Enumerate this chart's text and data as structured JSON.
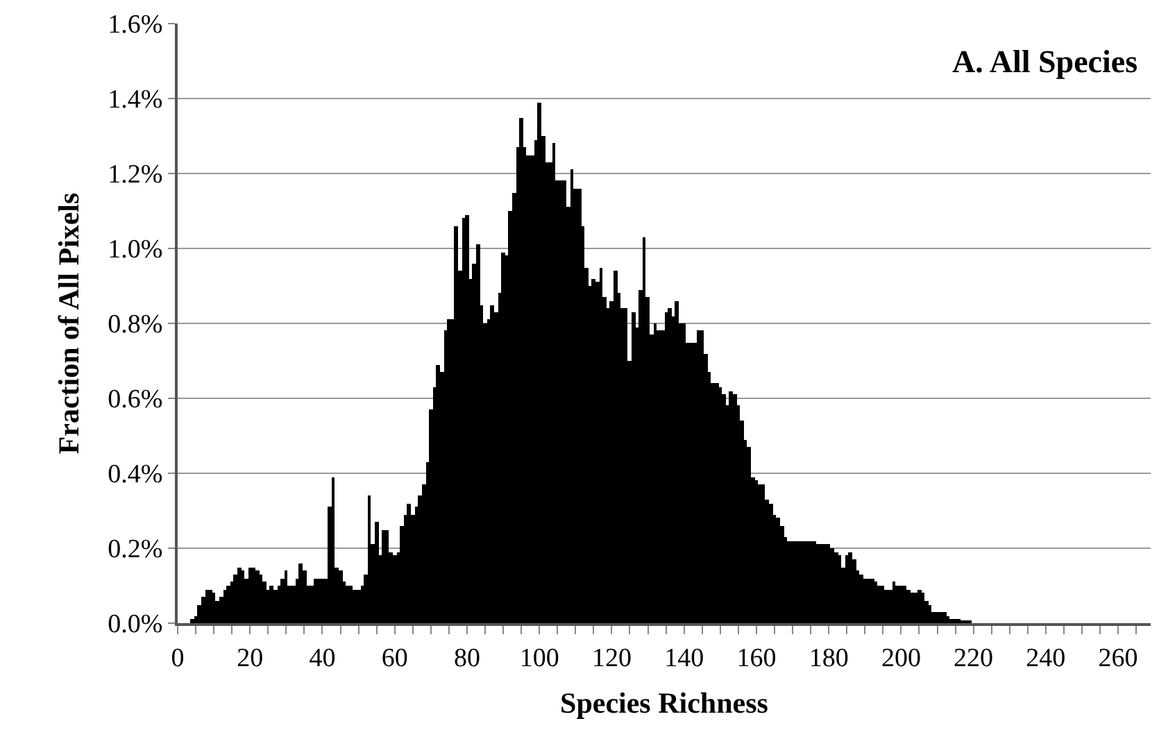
{
  "chart_data": {
    "type": "bar",
    "annotations": [
      "A. All Species"
    ],
    "xlabel": "Species Richness",
    "ylabel": "Fraction of All Pixels",
    "x": [
      4,
      5,
      6,
      7,
      8,
      9,
      10,
      11,
      12,
      13,
      14,
      15,
      16,
      17,
      18,
      19,
      20,
      21,
      22,
      23,
      24,
      25,
      26,
      27,
      28,
      29,
      30,
      31,
      32,
      33,
      34,
      35,
      36,
      37,
      38,
      39,
      40,
      41,
      42,
      43,
      44,
      45,
      46,
      47,
      48,
      49,
      50,
      51,
      52,
      53,
      54,
      55,
      56,
      57,
      58,
      59,
      60,
      61,
      62,
      63,
      64,
      65,
      66,
      67,
      68,
      69,
      70,
      71,
      72,
      73,
      74,
      75,
      76,
      77,
      78,
      79,
      80,
      81,
      82,
      83,
      84,
      85,
      86,
      87,
      88,
      89,
      90,
      91,
      92,
      93,
      94,
      95,
      96,
      97,
      98,
      99,
      100,
      101,
      102,
      103,
      104,
      105,
      106,
      107,
      108,
      109,
      110,
      111,
      112,
      113,
      114,
      115,
      116,
      117,
      118,
      119,
      120,
      121,
      122,
      123,
      124,
      125,
      126,
      127,
      128,
      129,
      130,
      131,
      132,
      133,
      134,
      135,
      136,
      137,
      138,
      139,
      140,
      141,
      142,
      143,
      144,
      145,
      146,
      147,
      148,
      149,
      150,
      151,
      152,
      153,
      154,
      155,
      156,
      157,
      158,
      159,
      160,
      161,
      162,
      163,
      164,
      165,
      166,
      167,
      168,
      169,
      170,
      171,
      172,
      173,
      174,
      175,
      176,
      177,
      178,
      179,
      180,
      181,
      182,
      183,
      184,
      185,
      186,
      187,
      188,
      189,
      190,
      191,
      192,
      193,
      194,
      195,
      196,
      197,
      198,
      199,
      200,
      201,
      202,
      203,
      204,
      205,
      206,
      207,
      208,
      209,
      210,
      211,
      212,
      213,
      214,
      215,
      216,
      217,
      218,
      219
    ],
    "series": [
      {
        "color": "#000000",
        "values": [
          0.01,
          0.02,
          0.05,
          0.07,
          0.09,
          0.09,
          0.08,
          0.06,
          0.07,
          0.09,
          0.1,
          0.11,
          0.13,
          0.15,
          0.14,
          0.12,
          0.15,
          0.15,
          0.14,
          0.13,
          0.11,
          0.09,
          0.1,
          0.09,
          0.1,
          0.12,
          0.14,
          0.1,
          0.1,
          0.12,
          0.16,
          0.14,
          0.1,
          0.1,
          0.12,
          0.12,
          0.12,
          0.12,
          0.31,
          0.39,
          0.15,
          0.14,
          0.11,
          0.1,
          0.1,
          0.09,
          0.09,
          0.1,
          0.13,
          0.34,
          0.21,
          0.27,
          0.18,
          0.25,
          0.25,
          0.19,
          0.18,
          0.19,
          0.26,
          0.29,
          0.32,
          0.29,
          0.31,
          0.34,
          0.37,
          0.43,
          0.57,
          0.63,
          0.69,
          0.67,
          0.78,
          0.81,
          0.81,
          1.06,
          0.94,
          1.08,
          1.09,
          0.92,
          0.96,
          1.01,
          0.85,
          0.8,
          0.81,
          0.85,
          0.83,
          0.88,
          0.99,
          0.98,
          1.1,
          1.15,
          1.27,
          1.35,
          1.27,
          1.25,
          1.25,
          1.29,
          1.39,
          1.3,
          1.23,
          1.23,
          1.28,
          1.18,
          1.18,
          1.18,
          1.11,
          1.21,
          1.16,
          1.16,
          1.06,
          0.95,
          0.9,
          0.92,
          0.91,
          0.95,
          0.87,
          0.84,
          0.86,
          0.94,
          0.88,
          0.84,
          0.84,
          0.7,
          0.83,
          0.79,
          0.89,
          1.03,
          0.87,
          0.77,
          0.8,
          0.78,
          0.78,
          0.83,
          0.84,
          0.82,
          0.86,
          0.8,
          0.8,
          0.75,
          0.75,
          0.75,
          0.78,
          0.78,
          0.72,
          0.67,
          0.64,
          0.64,
          0.63,
          0.61,
          0.58,
          0.62,
          0.61,
          0.58,
          0.54,
          0.49,
          0.47,
          0.39,
          0.38,
          0.37,
          0.37,
          0.33,
          0.32,
          0.29,
          0.28,
          0.26,
          0.23,
          0.22,
          0.22,
          0.22,
          0.22,
          0.22,
          0.22,
          0.22,
          0.22,
          0.21,
          0.21,
          0.21,
          0.21,
          0.2,
          0.19,
          0.18,
          0.15,
          0.18,
          0.19,
          0.17,
          0.14,
          0.13,
          0.12,
          0.12,
          0.12,
          0.11,
          0.1,
          0.1,
          0.09,
          0.09,
          0.11,
          0.1,
          0.1,
          0.1,
          0.09,
          0.08,
          0.08,
          0.09,
          0.08,
          0.06,
          0.05,
          0.03,
          0.03,
          0.03,
          0.03,
          0.02,
          0.01,
          0.01,
          0.01,
          0.005,
          0.005,
          0.005
        ]
      }
    ],
    "xlim": [
      0,
      269
    ],
    "xticks": [
      0,
      {
        "value": 5,
        "label": null
      },
      {
        "value": 10,
        "label": null
      },
      {
        "value": 15,
        "label": null
      },
      20,
      {
        "value": 25,
        "label": null
      },
      {
        "value": 30,
        "label": null
      },
      {
        "value": 35,
        "label": null
      },
      40,
      {
        "value": 45,
        "label": null
      },
      {
        "value": 50,
        "label": null
      },
      {
        "value": 55,
        "label": null
      },
      60,
      {
        "value": 65,
        "label": null
      },
      {
        "value": 70,
        "label": null
      },
      {
        "value": 75,
        "label": null
      },
      80,
      {
        "value": 85,
        "label": null
      },
      {
        "value": 90,
        "label": null
      },
      {
        "value": 95,
        "label": null
      },
      100,
      {
        "value": 105,
        "label": null
      },
      {
        "value": 110,
        "label": null
      },
      {
        "value": 115,
        "label": null
      },
      120,
      {
        "value": 125,
        "label": null
      },
      {
        "value": 130,
        "label": null
      },
      {
        "value": 135,
        "label": null
      },
      140,
      {
        "value": 145,
        "label": null
      },
      {
        "value": 150,
        "label": null
      },
      {
        "value": 155,
        "label": null
      },
      160,
      {
        "value": 165,
        "label": null
      },
      {
        "value": 170,
        "label": null
      },
      {
        "value": 175,
        "label": null
      },
      180,
      {
        "value": 185,
        "label": null
      },
      {
        "value": 190,
        "label": null
      },
      {
        "value": 195,
        "label": null
      },
      200,
      {
        "value": 205,
        "label": null
      },
      {
        "value": 210,
        "label": null
      },
      {
        "value": 215,
        "label": null
      },
      220,
      {
        "value": 225,
        "label": null
      },
      {
        "value": 230,
        "label": null
      },
      {
        "value": 235,
        "label": null
      },
      240,
      {
        "value": 245,
        "label": null
      },
      {
        "value": 250,
        "label": null
      },
      {
        "value": 255,
        "label": null
      },
      260,
      {
        "value": 265,
        "label": null
      }
    ],
    "ylim": [
      0,
      1.6
    ],
    "yticks": [
      {
        "value": 0,
        "label": "0.0%"
      },
      {
        "value": 0.2,
        "label": "0.2%"
      },
      {
        "value": 0.4,
        "label": "0.4%"
      },
      {
        "value": 0.6,
        "label": "0.6%"
      },
      {
        "value": 0.8,
        "label": "0.8%"
      },
      {
        "value": 1.0,
        "label": "1.0%"
      },
      {
        "value": 1.2,
        "label": "1.2%"
      },
      {
        "value": 1.4,
        "label": "1.4%"
      },
      {
        "value": 1.6,
        "label": "1.6%"
      }
    ],
    "grid": "y"
  }
}
